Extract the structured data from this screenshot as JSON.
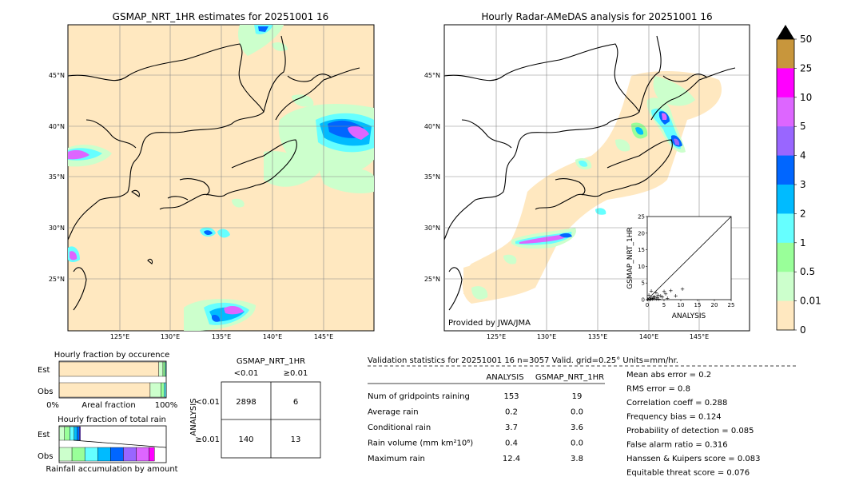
{
  "maps": {
    "left_title": "GSMAP_NRT_1HR estimates for 20251001 16",
    "right_title": "Hourly Radar-AMeDAS analysis for 20251001 16",
    "lat_labels": [
      "45°N",
      "40°N",
      "35°N",
      "30°N",
      "25°N"
    ],
    "lon_labels": [
      "125°E",
      "130°E",
      "135°E",
      "140°E",
      "145°E"
    ],
    "credit": "Provided by JWA/JMA"
  },
  "colorbar": {
    "labels": [
      "50",
      "25",
      "10",
      "5",
      "4",
      "3",
      "2",
      "1",
      "0.5",
      "0.01",
      "0"
    ],
    "colors": [
      "#c8963c",
      "#ff00ff",
      "#dd66ff",
      "#9966ff",
      "#0066ff",
      "#00bbff",
      "#66ffff",
      "#99ff99",
      "#ccffcc",
      "#ffe8c0"
    ]
  },
  "chart_data": [
    {
      "type": "scatter",
      "title": "",
      "xlabel": "ANALYSIS",
      "ylabel": "GSMAP_NRT_1HR",
      "xlim": [
        0,
        25
      ],
      "ylim": [
        0,
        25
      ],
      "x_ticks": [
        "0",
        "5",
        "10",
        "15",
        "20",
        "25"
      ],
      "y_ticks": [
        "0",
        "5",
        "10",
        "15",
        "20",
        "25"
      ],
      "points": [
        {
          "x": 0.2,
          "y": 0.1
        },
        {
          "x": 0.5,
          "y": 0.2
        },
        {
          "x": 0.8,
          "y": 0.1
        },
        {
          "x": 1.0,
          "y": 0.3
        },
        {
          "x": 1.2,
          "y": 0.5
        },
        {
          "x": 1.5,
          "y": 0.2
        },
        {
          "x": 1.8,
          "y": 0.8
        },
        {
          "x": 2.0,
          "y": 0.4
        },
        {
          "x": 2.3,
          "y": 1.0
        },
        {
          "x": 2.6,
          "y": 2.2
        },
        {
          "x": 3.0,
          "y": 0.6
        },
        {
          "x": 3.2,
          "y": 1.5
        },
        {
          "x": 3.5,
          "y": 0.3
        },
        {
          "x": 4.0,
          "y": 1.2
        },
        {
          "x": 4.5,
          "y": 0.9
        },
        {
          "x": 5.0,
          "y": 2.5
        },
        {
          "x": 5.5,
          "y": 1.8
        },
        {
          "x": 6.0,
          "y": 0.5
        },
        {
          "x": 7.0,
          "y": 2.8
        },
        {
          "x": 8.5,
          "y": 1.2
        },
        {
          "x": 10.5,
          "y": 3.2
        },
        {
          "x": 1.2,
          "y": 2.6
        },
        {
          "x": 0.5,
          "y": 1.5
        },
        {
          "x": 2.8,
          "y": 0.2
        }
      ]
    },
    {
      "type": "bar",
      "title": "Hourly fraction by occurence",
      "categories": [
        "Est",
        "Obs"
      ],
      "xlabel": "Areal fraction",
      "x_ticks": [
        "0%",
        "100%"
      ],
      "series": [
        {
          "values": [
            0.93,
            0.85
          ]
        },
        {
          "values": [
            0.04,
            0.1
          ]
        },
        {
          "values": [
            0.02,
            0.03
          ]
        },
        {
          "values": [
            0.01,
            0.02
          ]
        }
      ],
      "colors": [
        "#ffe8c0",
        "#ccffcc",
        "#99ff99",
        "#66ffff"
      ]
    },
    {
      "type": "bar",
      "title": "Hourly fraction of total rain",
      "categories": [
        "Est",
        "Obs"
      ],
      "xlabel": "Rainfall accumulation by amount",
      "series": [
        {
          "values": [
            0.05,
            0.12
          ]
        },
        {
          "values": [
            0.05,
            0.12
          ]
        },
        {
          "values": [
            0.04,
            0.12
          ]
        },
        {
          "values": [
            0.03,
            0.12
          ]
        },
        {
          "values": [
            0.02,
            0.12
          ]
        },
        {
          "values": [
            0.01,
            0.12
          ]
        },
        {
          "values": [
            0.0,
            0.12
          ]
        },
        {
          "values": [
            0.0,
            0.05
          ]
        }
      ],
      "colors": [
        "#ccffcc",
        "#99ff99",
        "#66ffff",
        "#00bbff",
        "#0066ff",
        "#9966ff",
        "#dd66ff",
        "#ff00ff"
      ]
    },
    {
      "type": "table",
      "title": "GSMAP_NRT_1HR",
      "col_headers": [
        "<0.01",
        "≥0.01"
      ],
      "row_axis_label": "ANALYSIS",
      "row_headers": [
        "<0.01",
        "≥0.01"
      ],
      "cells": [
        [
          "2898",
          "6"
        ],
        [
          "140",
          "13"
        ]
      ]
    }
  ],
  "validation": {
    "header": "Validation statistics for 20251001 16  n=3057 Valid. grid=0.25° Units=mm/hr.",
    "col_analysis": "ANALYSIS",
    "col_gsmap": "GSMAP_NRT_1HR",
    "rows": [
      {
        "label": "Num of gridpoints raining",
        "a": "153",
        "g": "19"
      },
      {
        "label": "Average rain",
        "a": "0.2",
        "g": "0.0"
      },
      {
        "label": "Conditional rain",
        "a": "3.7",
        "g": "3.6"
      },
      {
        "label": "Rain volume (mm km²10⁶)",
        "a": "0.4",
        "g": "0.0"
      },
      {
        "label": "Maximum rain",
        "a": "12.4",
        "g": "3.8"
      }
    ],
    "scores": [
      "Mean abs error =    0.2",
      "RMS error =    0.8",
      "Correlation coeff =  0.288",
      "Frequency bias =  0.124",
      "Probability of detection =  0.085",
      "False alarm ratio =  0.316",
      "Hanssen & Kuipers score =  0.083",
      "Equitable threat score =  0.076"
    ]
  }
}
